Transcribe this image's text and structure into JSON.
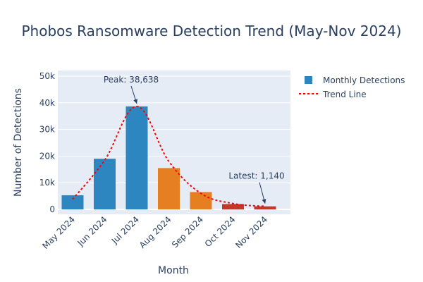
{
  "chart_data": {
    "type": "bar",
    "title": "Phobos Ransomware Detection Trend (May-Nov 2024)",
    "xlabel": "Month",
    "ylabel": "Number of Detections",
    "categories": [
      "May 2024",
      "Jun 2024",
      "Jul 2024",
      "Aug 2024",
      "Sep 2024",
      "Oct 2024",
      "Nov 2024"
    ],
    "ylim": [
      -1400,
      51500
    ],
    "yticks": [
      0,
      10000,
      20000,
      30000,
      40000,
      50000
    ],
    "ytick_labels": [
      "0",
      "10k",
      "20k",
      "30k",
      "40k",
      "50k"
    ],
    "grid": true,
    "legend_placement": "top-right",
    "series": [
      {
        "name": "Monthly Detections",
        "kind": "bar",
        "values": [
          5300,
          19000,
          38638,
          15500,
          6500,
          2000,
          1140
        ],
        "colors": [
          "#2e86c1",
          "#2e86c1",
          "#2e86c1",
          "#e67e22",
          "#e67e22",
          "#c0392b",
          "#c0392b"
        ],
        "legend_color": "#2e86c1"
      },
      {
        "name": "Trend Line",
        "kind": "line",
        "style": "dotted",
        "color": "#ff0000",
        "values": [
          3800,
          18500,
          38638,
          18000,
          6000,
          2200,
          1140
        ]
      }
    ],
    "annotations": [
      {
        "category": "Jul 2024",
        "value": 38638,
        "text": "Peak: 38,638"
      },
      {
        "category": "Nov 2024",
        "value": 1140,
        "text": "Latest: 1,140"
      }
    ],
    "colors": {
      "plot_background": "#e5ecf6",
      "grid": "#ffffff",
      "text": "#2a3f5f",
      "arrow": "#2a3f5f"
    }
  }
}
